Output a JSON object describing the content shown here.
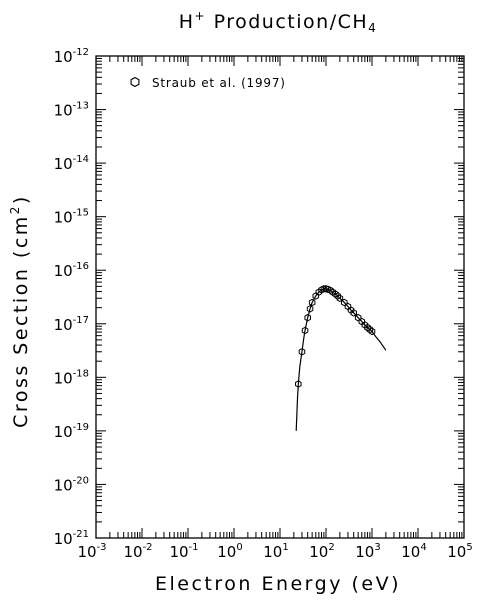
{
  "chart_data": {
    "type": "scatter",
    "title": "H⁺ Production/CH₄",
    "title_parts": {
      "a": "H",
      "a_sup": "+",
      "b": " Production/CH",
      "b_sub": "4"
    },
    "xlabel": "Electron Energy (eV)",
    "ylabel": "Cross Section (cm²)",
    "ylabel_parts": {
      "a": "Cross Section (cm",
      "a_sup": "2",
      "b": ")"
    },
    "x_scale": "log",
    "y_scale": "log",
    "xlim": [
      0.001,
      100000
    ],
    "ylim": [
      1e-21,
      1e-12
    ],
    "x_tick_labels": [
      {
        "base": "10",
        "exp": "-3"
      },
      {
        "base": "10",
        "exp": "-2"
      },
      {
        "base": "10",
        "exp": "-1"
      },
      {
        "base": "10",
        "exp": "0"
      },
      {
        "base": "10",
        "exp": "1"
      },
      {
        "base": "10",
        "exp": "2"
      },
      {
        "base": "10",
        "exp": "3"
      },
      {
        "base": "10",
        "exp": "4"
      },
      {
        "base": "10",
        "exp": "5"
      }
    ],
    "y_tick_labels": [
      {
        "base": "10",
        "exp": "-21"
      },
      {
        "base": "10",
        "exp": "-20"
      },
      {
        "base": "10",
        "exp": "-19"
      },
      {
        "base": "10",
        "exp": "-18"
      },
      {
        "base": "10",
        "exp": "-17"
      },
      {
        "base": "10",
        "exp": "-16"
      },
      {
        "base": "10",
        "exp": "-15"
      },
      {
        "base": "10",
        "exp": "-14"
      },
      {
        "base": "10",
        "exp": "-13"
      },
      {
        "base": "10",
        "exp": "-12"
      }
    ],
    "legend": {
      "position": "top-left",
      "entries": [
        "Straub et al. (1997)"
      ]
    },
    "grid": false,
    "series": [
      {
        "name": "Straub et al. (1997)",
        "kind": "markers",
        "marker": "open-hexagon",
        "x": [
          25,
          30,
          35,
          40,
          45,
          50,
          60,
          70,
          80,
          90,
          100,
          110,
          125,
          140,
          160,
          180,
          200,
          250,
          300,
          350,
          400,
          500,
          600,
          700,
          800,
          900,
          1000
        ],
        "y": [
          7.5e-19,
          3e-18,
          7.5e-18,
          1.3e-17,
          1.9e-17,
          2.5e-17,
          3.3e-17,
          3.9e-17,
          4.3e-17,
          4.5e-17,
          4.5e-17,
          4.4e-17,
          4.2e-17,
          3.9e-17,
          3.6e-17,
          3.3e-17,
          3e-17,
          2.5e-17,
          2.1e-17,
          1.8e-17,
          1.6e-17,
          1.3e-17,
          1.1e-17,
          9.5e-18,
          8.5e-18,
          7.8e-18,
          7.2e-18
        ]
      },
      {
        "name": "",
        "kind": "line",
        "x": [
          22.5,
          24,
          25,
          27,
          30,
          33,
          35,
          40,
          45,
          50,
          60,
          70,
          80,
          90,
          100,
          110,
          125,
          140,
          160,
          180,
          200,
          250,
          300,
          350,
          400,
          500,
          600,
          700,
          800,
          900,
          1000,
          1200,
          1500,
          2000
        ],
        "y": [
          1e-19,
          4e-19,
          7.5e-19,
          1.6e-18,
          3e-18,
          5.5e-18,
          7.5e-18,
          1.3e-17,
          1.9e-17,
          2.5e-17,
          3.3e-17,
          3.9e-17,
          4.3e-17,
          4.5e-17,
          4.5e-17,
          4.4e-17,
          4.2e-17,
          3.9e-17,
          3.6e-17,
          3.3e-17,
          3e-17,
          2.5e-17,
          2.1e-17,
          1.8e-17,
          1.6e-17,
          1.3e-17,
          1.1e-17,
          9.5e-18,
          8.5e-18,
          7.8e-18,
          7.2e-18,
          5.8e-18,
          4.6e-18,
          3.2e-18
        ]
      }
    ]
  }
}
